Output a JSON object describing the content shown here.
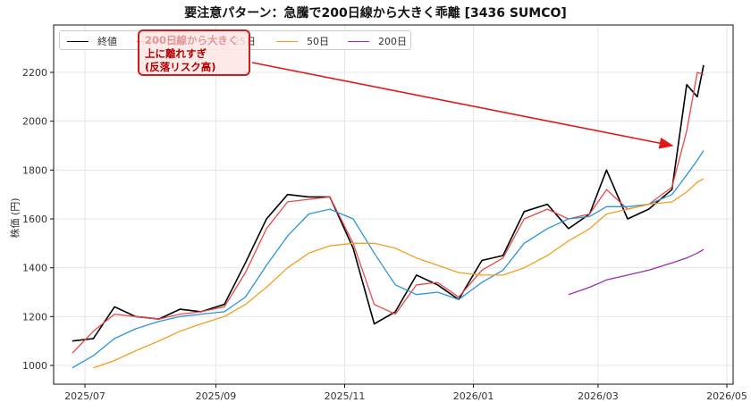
{
  "title": "要注意パターン：急騰で200日線から大きく乖離 [3436 SUMCO]",
  "axes": {
    "ylabel": "株価 (円)",
    "yticks": [
      "1000",
      "1200",
      "1400",
      "1600",
      "1800",
      "2000",
      "2200"
    ],
    "xticks": [
      "2025/07",
      "2025/09",
      "2025/11",
      "2026/01",
      "2026/03",
      "2026/05"
    ]
  },
  "legend": [
    {
      "label": "終値",
      "color": "#000000"
    },
    {
      "label": "5日",
      "color": "#e8484a"
    },
    {
      "label": "25日",
      "color": "#2e94d8"
    },
    {
      "label": "50日",
      "color": "#f0a020"
    },
    {
      "label": "200日",
      "color": "#9a2fb0"
    }
  ],
  "annotation": {
    "line1": "200日線から大きく",
    "line2": "上に離れすぎ",
    "line3": "(反落リスク高)",
    "color": "#d01c1c"
  },
  "chart_data": {
    "type": "line",
    "title": "要注意パターン：急騰で200日線から大きく乖離 [3436 SUMCO]",
    "xlabel": "",
    "ylabel": "株価 (円)",
    "ylim": [
      930,
      2400
    ],
    "xlim": [
      "2025-06-20",
      "2026-05-05"
    ],
    "grid": true,
    "legend_position": "upper left",
    "annotation": {
      "text": "200日線から大きく上に離れすぎ (反落リスク高)",
      "arrow_to": [
        "2026-04-08",
        1890
      ]
    },
    "x": [
      "2025-06-25",
      "2025-07-05",
      "2025-07-15",
      "2025-07-25",
      "2025-08-05",
      "2025-08-15",
      "2025-08-25",
      "2025-09-05",
      "2025-09-15",
      "2025-09-25",
      "2025-10-05",
      "2025-10-15",
      "2025-10-25",
      "2025-11-05",
      "2025-11-15",
      "2025-11-25",
      "2025-12-05",
      "2025-12-15",
      "2025-12-25",
      "2026-01-05",
      "2026-01-15",
      "2026-01-25",
      "2026-02-05",
      "2026-02-15",
      "2026-02-25",
      "2026-03-05",
      "2026-03-15",
      "2026-03-25",
      "2026-04-05",
      "2026-04-12",
      "2026-04-17",
      "2026-04-20"
    ],
    "series": [
      {
        "name": "終値",
        "color": "#000000",
        "values": [
          1100,
          1110,
          1240,
          1200,
          1190,
          1230,
          1220,
          1250,
          1420,
          1600,
          1700,
          1690,
          1690,
          1480,
          1170,
          1220,
          1370,
          1330,
          1270,
          1430,
          1450,
          1630,
          1660,
          1560,
          1620,
          1800,
          1600,
          1640,
          1720,
          2150,
          2100,
          2230
        ]
      },
      {
        "name": "5日",
        "color": "#e8484a",
        "values": [
          1050,
          1140,
          1210,
          1200,
          1190,
          1210,
          1220,
          1240,
          1380,
          1560,
          1670,
          1680,
          1690,
          1500,
          1250,
          1210,
          1330,
          1340,
          1280,
          1390,
          1440,
          1600,
          1640,
          1600,
          1620,
          1720,
          1640,
          1660,
          1730,
          1960,
          2200,
          2190
        ]
      },
      {
        "name": "25日",
        "color": "#2e94d8",
        "values": [
          990,
          1040,
          1110,
          1150,
          1180,
          1200,
          1210,
          1220,
          1280,
          1410,
          1530,
          1620,
          1640,
          1600,
          1460,
          1330,
          1290,
          1300,
          1270,
          1340,
          1390,
          1500,
          1560,
          1600,
          1610,
          1650,
          1650,
          1660,
          1700,
          1780,
          1840,
          1880
        ]
      },
      {
        "name": "50日",
        "color": "#f0a020",
        "values": [
          null,
          990,
          1020,
          1060,
          1100,
          1140,
          1170,
          1200,
          1250,
          1320,
          1400,
          1460,
          1490,
          1500,
          1500,
          1480,
          1440,
          1410,
          1380,
          1370,
          1370,
          1400,
          1450,
          1510,
          1560,
          1620,
          1640,
          1660,
          1670,
          1710,
          1750,
          1765
        ]
      },
      {
        "name": "200日",
        "color": "#9a2fb0",
        "values": [
          null,
          null,
          null,
          null,
          null,
          null,
          null,
          null,
          null,
          null,
          null,
          null,
          null,
          null,
          null,
          null,
          null,
          null,
          null,
          null,
          null,
          null,
          null,
          1290,
          1320,
          1350,
          1370,
          1390,
          1420,
          1440,
          1460,
          1475
        ]
      }
    ]
  }
}
